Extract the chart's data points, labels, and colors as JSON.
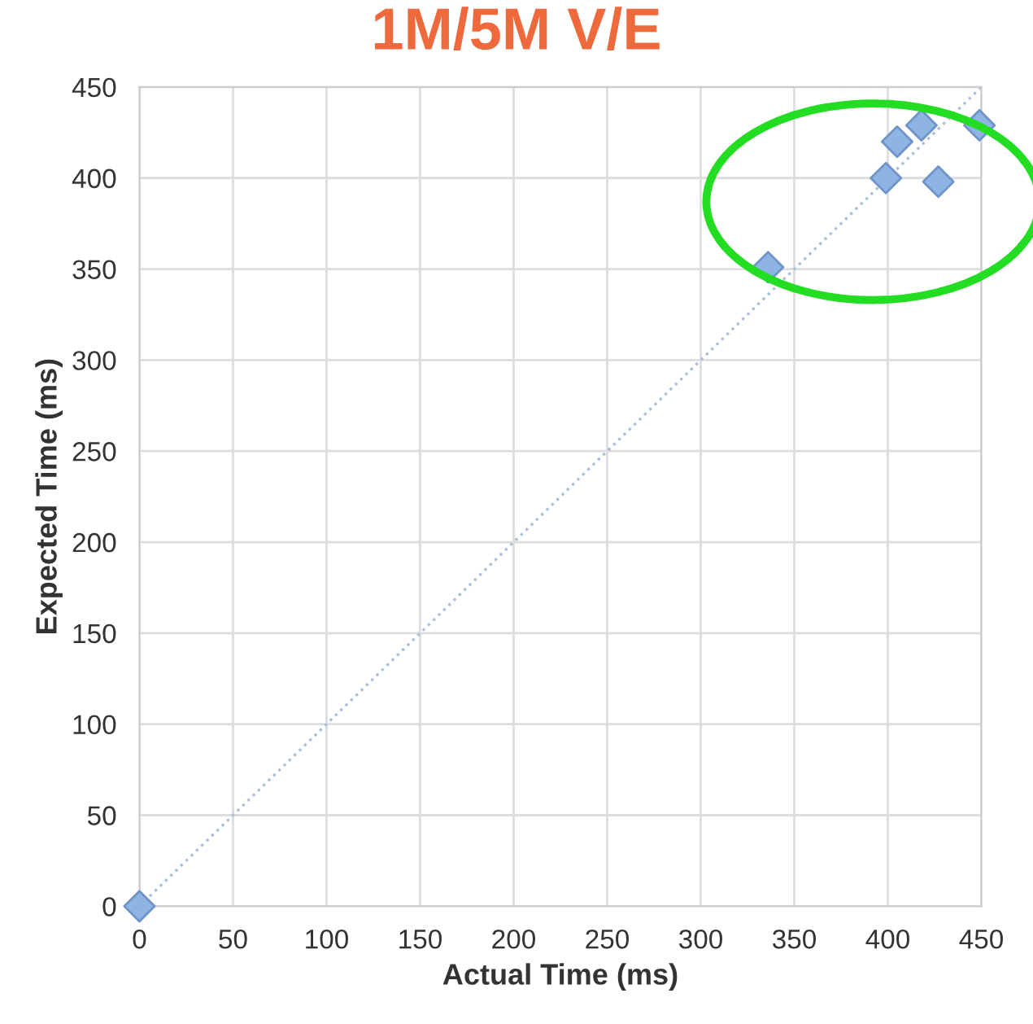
{
  "chart_data": {
    "type": "scatter",
    "title": "1M/5M V/E",
    "xlabel": "Actual Time (ms)",
    "ylabel": "Expected Time (ms)",
    "xlim": [
      0,
      450
    ],
    "ylim": [
      0,
      450
    ],
    "xticks": [
      0,
      50,
      100,
      150,
      200,
      250,
      300,
      350,
      400,
      450
    ],
    "yticks": [
      0,
      50,
      100,
      150,
      200,
      250,
      300,
      350,
      400,
      450
    ],
    "grid": true,
    "marker": "diamond",
    "series": [
      {
        "color": "#8eb4e3",
        "x": [
          0,
          336,
          399,
          405,
          418,
          427,
          449
        ],
        "values": [
          0,
          351,
          400,
          420,
          429,
          398,
          429
        ]
      },
      {
        "type": "line",
        "color": "#a9bfdc",
        "line_style": "dotted",
        "marker": "none",
        "x": [
          0,
          450
        ],
        "values": [
          0,
          450
        ]
      }
    ]
  }
}
